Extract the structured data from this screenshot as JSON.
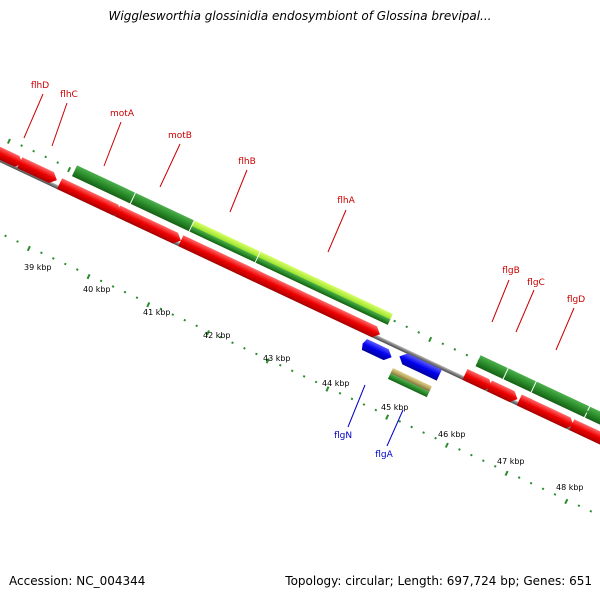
{
  "title": "Wigglesworthia glossinidia endosymbiont of Glossina brevipal...",
  "footer": {
    "accession": "Accession: NC_004344",
    "summary": "Topology: circular; Length: 697,724 bp; Genes: 651"
  },
  "scale_labels": [
    "39 kbp",
    "40 kbp",
    "41 kbp",
    "42 kbp",
    "43 kbp",
    "44 kbp",
    "45 kbp",
    "46 kbp",
    "47 kbp",
    "48 kbp"
  ],
  "gene_labels": [
    {
      "name": "flhD",
      "color": "#cc0000"
    },
    {
      "name": "flhC",
      "color": "#cc0000"
    },
    {
      "name": "motA",
      "color": "#cc0000"
    },
    {
      "name": "motB",
      "color": "#cc0000"
    },
    {
      "name": "flhB",
      "color": "#cc0000"
    },
    {
      "name": "flhA",
      "color": "#cc0000"
    },
    {
      "name": "flgB",
      "color": "#cc0000"
    },
    {
      "name": "flgC",
      "color": "#cc0000"
    },
    {
      "name": "flgD",
      "color": "#cc0000"
    },
    {
      "name": "flgN",
      "color": "#0000cc"
    },
    {
      "name": "flgA",
      "color": "#0000cc"
    }
  ],
  "colors": {
    "forward_gene": "#e80000",
    "operon_green": "#2a8c2a",
    "highlight_green": "#9be22a",
    "reverse_gene": "#0000ee",
    "backbone": "#7a7a7a",
    "tick": "#2a8c2a"
  }
}
